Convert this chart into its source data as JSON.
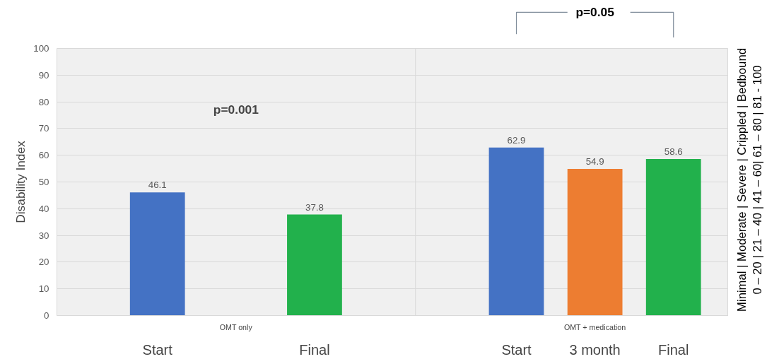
{
  "chart_data": {
    "type": "bar",
    "ylabel": "Disability Index",
    "categories": [
      "Start",
      null,
      "Final",
      "Start",
      "3 month",
      "Final"
    ],
    "values": [
      46.1,
      null,
      37.8,
      62.9,
      54.9,
      58.6
    ],
    "colors": [
      "#4472c4",
      "#ed7d31",
      "#22b14c",
      "#4472c4",
      "#ed7d31",
      "#22b14c"
    ],
    "ylim": [
      0,
      100
    ],
    "yticks": [
      0,
      10,
      20,
      30,
      40,
      50,
      60,
      70,
      80,
      90,
      100
    ],
    "grid": "y",
    "data_labels": true,
    "annotations": [
      "p=0.001",
      "p=0.05",
      "OMT only",
      "OMT + medication",
      "Minimal | Moderate | Severe | Crippled | Bedbound",
      "0 – 20 | 21 – 40 | 41 – 60| 61 – 80 | 81 - 100"
    ]
  }
}
